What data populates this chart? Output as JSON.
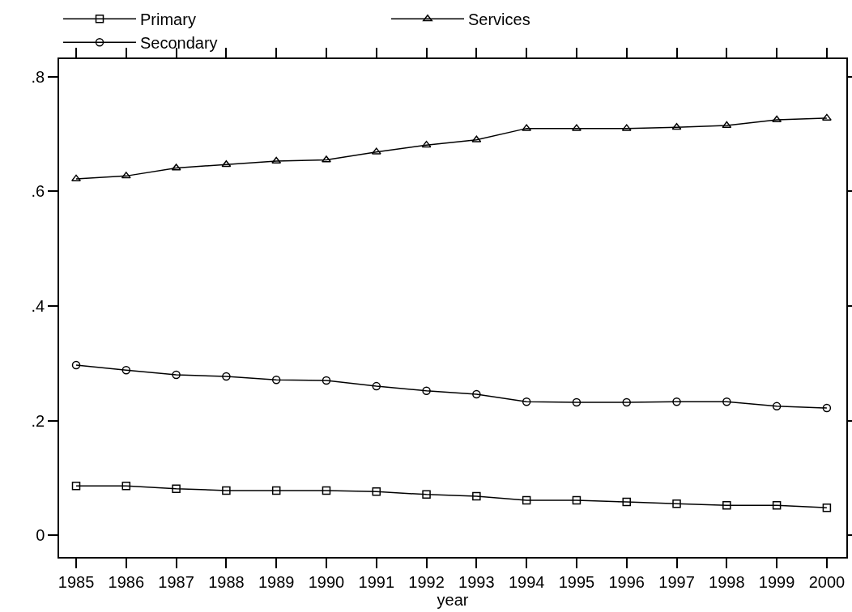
{
  "chart_data": {
    "type": "line",
    "xlabel": "year",
    "x": [
      1985,
      1986,
      1987,
      1988,
      1989,
      1990,
      1991,
      1992,
      1993,
      1994,
      1995,
      1996,
      1997,
      1998,
      1999,
      2000
    ],
    "series": [
      {
        "name": "Primary",
        "color": "#000000",
        "marker": "square",
        "values": [
          0.086,
          0.086,
          0.081,
          0.078,
          0.078,
          0.078,
          0.076,
          0.071,
          0.068,
          0.061,
          0.061,
          0.058,
          0.055,
          0.052,
          0.052,
          0.048
        ]
      },
      {
        "name": "Services",
        "color": "#000000",
        "marker": "triangle",
        "values": [
          0.622,
          0.627,
          0.641,
          0.647,
          0.653,
          0.655,
          0.669,
          0.681,
          0.69,
          0.71,
          0.71,
          0.71,
          0.712,
          0.715,
          0.725,
          0.728
        ]
      },
      {
        "name": "Secondary",
        "color": "#000000",
        "marker": "circle",
        "values": [
          0.297,
          0.288,
          0.28,
          0.277,
          0.271,
          0.27,
          0.26,
          0.252,
          0.246,
          0.233,
          0.232,
          0.232,
          0.233,
          0.233,
          0.225,
          0.222
        ]
      }
    ],
    "xlim": [
      1984.66,
      2000.39
    ],
    "xticks": [
      1985,
      1986,
      1987,
      1988,
      1989,
      1990,
      1991,
      1992,
      1993,
      1994,
      1995,
      1996,
      1997,
      1998,
      1999,
      2000
    ],
    "ylim": [
      -0.038,
      0.831
    ],
    "yticks": [
      0,
      {
        "value": 0.2,
        "label": ".2"
      },
      {
        "value": 0.4,
        "label": ".4"
      },
      {
        "value": 0.6,
        "label": ".6"
      },
      {
        "value": 0.8,
        "label": ".8"
      }
    ],
    "grid": false,
    "legend": "top",
    "line_style": "solid"
  }
}
